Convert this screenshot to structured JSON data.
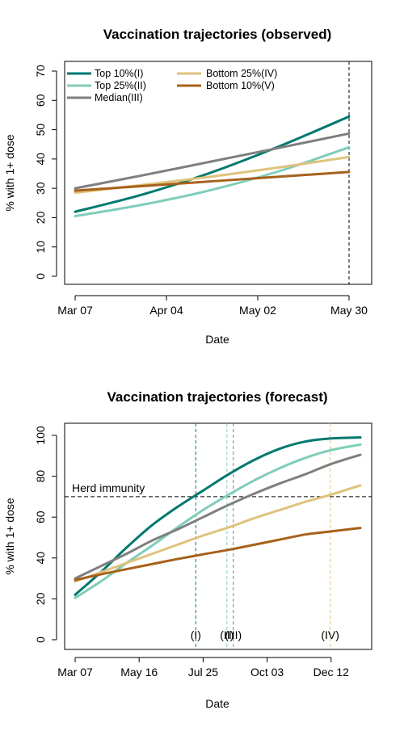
{
  "chart_data": [
    {
      "type": "line",
      "title": "Vaccination trajectories (observed)",
      "xlabel": "Date",
      "ylabel": "% with 1+ dose",
      "x_unit": "day",
      "xlim": [
        "2021-03-07",
        "2021-05-30"
      ],
      "ylim": [
        0,
        70
      ],
      "x_ticks": [
        {
          "date": "2021-03-07",
          "label": "Mar 07"
        },
        {
          "date": "2021-04-04",
          "label": "Apr 04"
        },
        {
          "date": "2021-05-02",
          "label": "May 02"
        },
        {
          "date": "2021-05-30",
          "label": "May 30"
        }
      ],
      "y_ticks": [
        0,
        10,
        20,
        30,
        40,
        50,
        60,
        70
      ],
      "legend": {
        "placement": "top-left"
      },
      "vlines": [
        {
          "x": "2021-05-30",
          "style": "dashed",
          "color": "#000000"
        }
      ],
      "series": [
        {
          "name": "Top 10%(I)",
          "color": "#01796F",
          "x": [
            "2021-03-07",
            "2021-03-28",
            "2021-04-18",
            "2021-05-09",
            "2021-05-30"
          ],
          "y": [
            22,
            28,
            35.5,
            44.5,
            54.5
          ]
        },
        {
          "name": "Top 25%(II)",
          "color": "#7FCDBB",
          "x": [
            "2021-03-07",
            "2021-03-28",
            "2021-04-18",
            "2021-05-09",
            "2021-05-30"
          ],
          "y": [
            20.5,
            24.5,
            29.5,
            36,
            44
          ]
        },
        {
          "name": "Median(III)",
          "color": "#7F7F7F",
          "x": [
            "2021-03-07",
            "2021-03-28",
            "2021-04-18",
            "2021-05-09",
            "2021-05-30"
          ],
          "y": [
            30,
            34.5,
            39.2,
            43.9,
            48.7
          ]
        },
        {
          "name": "Bottom 25%(IV)",
          "color": "#DFC27D",
          "x": [
            "2021-03-07",
            "2021-03-28",
            "2021-04-18",
            "2021-05-09",
            "2021-05-30"
          ],
          "y": [
            28.5,
            31.2,
            34,
            37.2,
            40.7
          ]
        },
        {
          "name": "Bottom 10%(V)",
          "color": "#A6611A",
          "x": [
            "2021-03-07",
            "2021-03-28",
            "2021-04-18",
            "2021-05-09",
            "2021-05-30"
          ],
          "y": [
            29.2,
            30.8,
            32.4,
            34,
            35.6
          ]
        }
      ]
    },
    {
      "type": "line",
      "title": "Vaccination trajectories (forecast)",
      "xlabel": "Date",
      "ylabel": "% with 1+ dose",
      "x_unit": "day",
      "xlim": [
        "2021-03-07",
        "2022-01-13"
      ],
      "ylim": [
        0,
        100
      ],
      "x_ticks": [
        {
          "date": "2021-03-07",
          "label": "Mar 07"
        },
        {
          "date": "2021-05-16",
          "label": "May 16"
        },
        {
          "date": "2021-07-25",
          "label": "Jul 25"
        },
        {
          "date": "2021-10-03",
          "label": "Oct 03"
        },
        {
          "date": "2021-12-12",
          "label": "Dec 12"
        }
      ],
      "y_ticks": [
        0,
        20,
        40,
        60,
        80,
        100
      ],
      "hline": {
        "y": 70,
        "label": "Herd immunity",
        "style": "dashed",
        "color": "#000000"
      },
      "vlines": [
        {
          "x": "2021-07-17",
          "label": "(I)",
          "color": "#01796F"
        },
        {
          "x": "2021-08-20",
          "label": "(II)",
          "color": "#7FCDBB"
        },
        {
          "x": "2021-08-27",
          "label": "(III)",
          "color": "#7F7F7F"
        },
        {
          "x": "2021-12-11",
          "label": "(IV)",
          "color": "#DFC27D"
        }
      ],
      "series": [
        {
          "name": "Top 10%(I)",
          "color": "#01796F",
          "x": [
            "2021-03-07",
            "2021-04-04",
            "2021-05-02",
            "2021-05-30",
            "2021-06-27",
            "2021-07-25",
            "2021-08-22",
            "2021-09-19",
            "2021-10-17",
            "2021-11-14",
            "2021-12-12",
            "2022-01-13"
          ],
          "y": [
            22,
            33,
            45,
            56,
            65,
            73,
            81,
            88,
            93.5,
            97,
            98.5,
            99
          ]
        },
        {
          "name": "Top 25%(II)",
          "color": "#7FCDBB",
          "x": [
            "2021-03-07",
            "2021-04-04",
            "2021-05-02",
            "2021-05-30",
            "2021-06-27",
            "2021-07-25",
            "2021-08-22",
            "2021-09-19",
            "2021-10-17",
            "2021-11-14",
            "2021-12-12",
            "2022-01-13"
          ],
          "y": [
            20.5,
            28.5,
            37.5,
            46,
            55,
            63.5,
            71,
            78,
            84,
            89,
            92.8,
            95.5
          ]
        },
        {
          "name": "Median(III)",
          "color": "#7F7F7F",
          "x": [
            "2021-03-07",
            "2021-04-04",
            "2021-05-02",
            "2021-05-30",
            "2021-06-27",
            "2021-07-25",
            "2021-08-22",
            "2021-09-19",
            "2021-10-17",
            "2021-11-14",
            "2021-12-12",
            "2022-01-13"
          ],
          "y": [
            30,
            36,
            42,
            48.5,
            54,
            60,
            66,
            71.5,
            76.5,
            81,
            86,
            90.5
          ]
        },
        {
          "name": "Bottom 25%(IV)",
          "color": "#DFC27D",
          "x": [
            "2021-03-07",
            "2021-04-04",
            "2021-05-02",
            "2021-05-30",
            "2021-06-27",
            "2021-07-25",
            "2021-08-22",
            "2021-09-19",
            "2021-10-17",
            "2021-11-14",
            "2021-12-12",
            "2022-01-13"
          ],
          "y": [
            28.5,
            33,
            37.5,
            42,
            46.5,
            51,
            55,
            59.5,
            63.5,
            67.5,
            71,
            75.5
          ]
        },
        {
          "name": "Bottom 10%(V)",
          "color": "#A6611A",
          "x": [
            "2021-03-07",
            "2021-04-04",
            "2021-05-02",
            "2021-05-30",
            "2021-06-27",
            "2021-07-25",
            "2021-08-22",
            "2021-09-19",
            "2021-10-17",
            "2021-11-14",
            "2021-12-12",
            "2022-01-13"
          ],
          "y": [
            29.2,
            32,
            34.5,
            37,
            39.5,
            41.8,
            44,
            46.5,
            49,
            51.5,
            53,
            54.7
          ]
        }
      ]
    }
  ]
}
